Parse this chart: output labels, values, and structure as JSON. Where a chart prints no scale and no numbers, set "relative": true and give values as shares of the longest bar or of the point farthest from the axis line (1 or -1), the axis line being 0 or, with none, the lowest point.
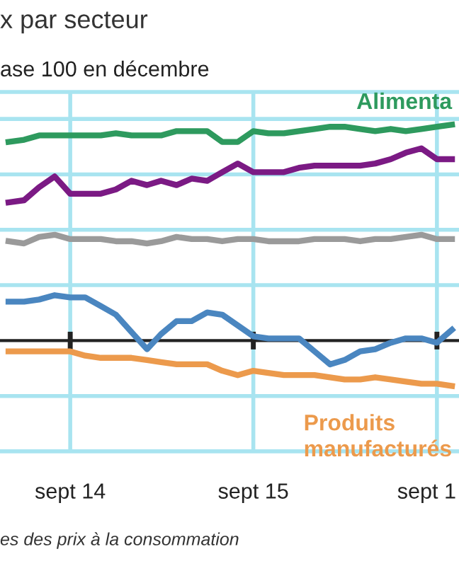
{
  "chart_data": {
    "type": "line",
    "title": "x par secteur",
    "subtitle": "ase 100 en décembre",
    "annotations": [
      "es des prix à la consommation"
    ],
    "relative": true,
    "grid": true,
    "legend": false,
    "x": [
      "2014-05",
      "2014-06",
      "2014-07",
      "2014-08",
      "2014-09",
      "2014-10",
      "2014-11",
      "2014-12",
      "2015-01",
      "2015-02",
      "2015-03",
      "2015-04",
      "2015-05",
      "2015-06",
      "2015-07",
      "2015-08",
      "2015-09",
      "2015-10",
      "2015-11",
      "2015-12",
      "2016-01",
      "2016-02",
      "2016-03",
      "2016-04",
      "2016-05",
      "2016-06",
      "2016-07",
      "2016-08",
      "2016-09",
      "2016-10"
    ],
    "xlim": [
      "2014-04-14",
      "2016-10-15"
    ],
    "xticks": [
      {
        "value": "2014-09",
        "label": "sept 14"
      },
      {
        "value": "2015-09",
        "label": "sept 15"
      },
      {
        "value": "2016-09",
        "label": "sept 1"
      }
    ],
    "series": [
      {
        "name": "Alimenta",
        "color": "#2e9a5e",
        "values": [
          0.92,
          0.93,
          0.95,
          0.95,
          0.95,
          0.95,
          0.95,
          0.96,
          0.95,
          0.95,
          0.95,
          0.97,
          0.97,
          0.97,
          0.92,
          0.92,
          0.97,
          0.96,
          0.96,
          0.97,
          0.98,
          0.99,
          0.99,
          0.98,
          0.97,
          0.98,
          0.97,
          0.98,
          0.99,
          1.0
        ]
      },
      {
        "color": "#7b1a84",
        "values": [
          0.64,
          0.65,
          0.71,
          0.76,
          0.68,
          0.68,
          0.68,
          0.7,
          0.74,
          0.72,
          0.74,
          0.72,
          0.75,
          0.74,
          0.78,
          0.82,
          0.78,
          0.78,
          0.78,
          0.8,
          0.81,
          0.81,
          0.81,
          0.81,
          0.82,
          0.84,
          0.87,
          0.89,
          0.84,
          0.84
        ]
      },
      {
        "color": "#9a9a9a",
        "values": [
          0.46,
          0.45,
          0.48,
          0.49,
          0.47,
          0.47,
          0.47,
          0.46,
          0.46,
          0.45,
          0.46,
          0.48,
          0.47,
          0.47,
          0.46,
          0.47,
          0.47,
          0.46,
          0.46,
          0.46,
          0.47,
          0.47,
          0.47,
          0.46,
          0.47,
          0.47,
          0.48,
          0.49,
          0.47,
          0.47
        ]
      },
      {
        "color": "#4a86c0",
        "values": [
          0.18,
          0.18,
          0.19,
          0.21,
          0.2,
          0.2,
          0.16,
          0.12,
          0.04,
          -0.04,
          0.03,
          0.09,
          0.09,
          0.13,
          0.12,
          0.07,
          0.02,
          0.01,
          0.01,
          0.01,
          -0.05,
          -0.11,
          -0.09,
          -0.05,
          -0.04,
          -0.01,
          0.01,
          0.01,
          -0.01,
          0.05
        ]
      },
      {
        "name": "Produits\nmanufacturés",
        "color": "#ec9a4c",
        "values": [
          -0.05,
          -0.05,
          -0.05,
          -0.05,
          -0.05,
          -0.07,
          -0.08,
          -0.08,
          -0.08,
          -0.09,
          -0.1,
          -0.11,
          -0.11,
          -0.11,
          -0.14,
          -0.16,
          -0.14,
          -0.15,
          -0.16,
          -0.16,
          -0.16,
          -0.17,
          -0.18,
          -0.18,
          -0.17,
          -0.18,
          -0.19,
          -0.2,
          -0.2,
          -0.21
        ]
      }
    ]
  }
}
